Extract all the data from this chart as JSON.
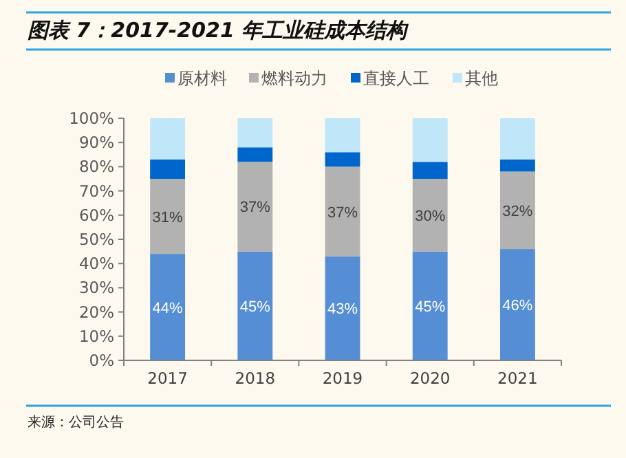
{
  "chart_data": {
    "type": "bar",
    "title": "图表 7：2017-2021 年工业硅成本结构",
    "categories": [
      "2017",
      "2018",
      "2019",
      "2020",
      "2021"
    ],
    "stacked": true,
    "legend": "top",
    "ylim": [
      0,
      100
    ],
    "yticks": [
      {
        "value": 0,
        "label": "0%"
      },
      {
        "value": 10,
        "label": "10%"
      },
      {
        "value": 20,
        "label": "20%"
      },
      {
        "value": 30,
        "label": "30%"
      },
      {
        "value": 40,
        "label": "40%"
      },
      {
        "value": 50,
        "label": "50%"
      },
      {
        "value": 60,
        "label": "60%"
      },
      {
        "value": 70,
        "label": "70%"
      },
      {
        "value": 80,
        "label": "80%"
      },
      {
        "value": 90,
        "label": "90%"
      },
      {
        "value": 100,
        "label": "100%"
      }
    ],
    "series": [
      {
        "name": "原材料",
        "color": "#558ed5",
        "values": [
          44,
          45,
          43,
          45,
          46
        ],
        "value_labels": [
          "44%",
          "45%",
          "43%",
          "45%",
          "46%"
        ]
      },
      {
        "name": "燃料动力",
        "color": "#b2b2b2",
        "values": [
          31,
          37,
          37,
          30,
          32
        ],
        "value_labels": [
          "31%",
          "37%",
          "37%",
          "30%",
          "32%"
        ]
      },
      {
        "name": "直接人工",
        "color": "#0066cc",
        "values": [
          8,
          6,
          6,
          7,
          5
        ]
      },
      {
        "name": "其他",
        "color": "#bfe6f9",
        "values": [
          17,
          12,
          14,
          18,
          17
        ]
      }
    ],
    "annotations": [
      "来源：公司公告"
    ]
  }
}
